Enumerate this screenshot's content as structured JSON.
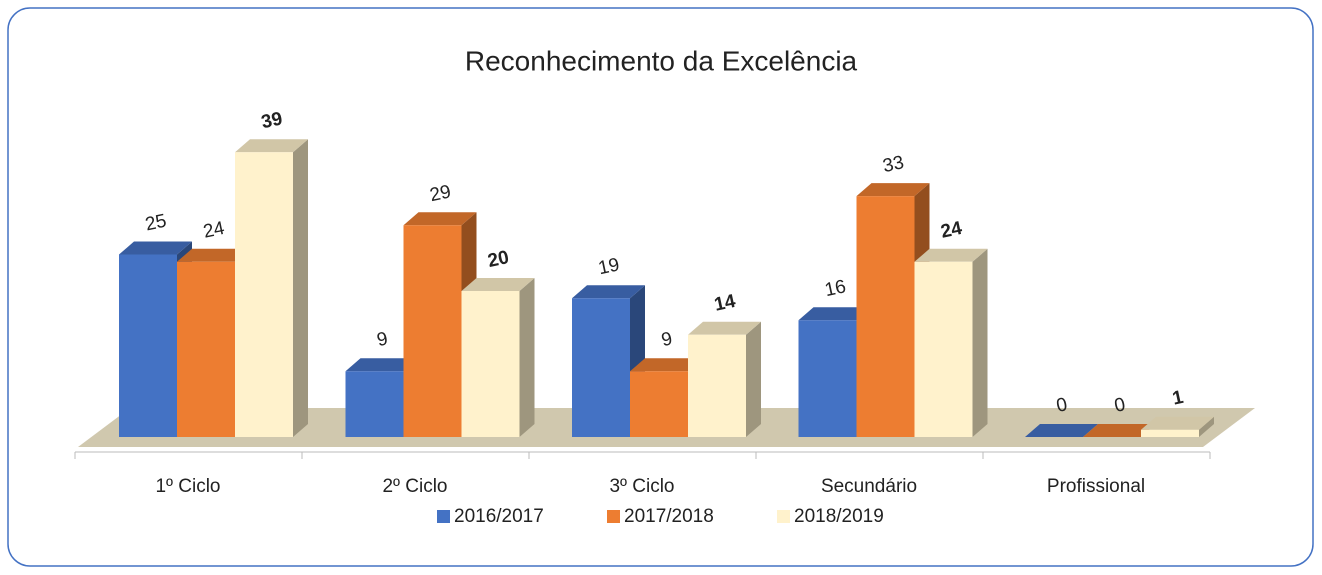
{
  "chart_data": {
    "type": "bar3d",
    "title": "Reconhecimento da Excelência",
    "categories": [
      "1º Ciclo",
      "2º Ciclo",
      "3º Ciclo",
      "Secundário",
      "Profissional"
    ],
    "series": [
      {
        "name": "2016/2017",
        "color": "#4472c4",
        "values": [
          25,
          9,
          19,
          16,
          0
        ]
      },
      {
        "name": "2017/2018",
        "color": "#ed7d31",
        "values": [
          24,
          29,
          9,
          33,
          0
        ]
      },
      {
        "name": "2018/2019",
        "color": "#fff2cc",
        "values": [
          39,
          20,
          14,
          24,
          1
        ]
      }
    ]
  }
}
